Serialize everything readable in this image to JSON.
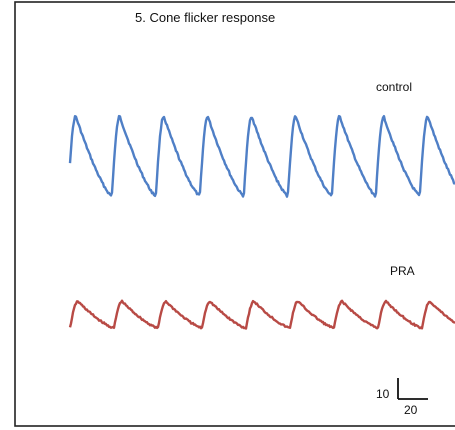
{
  "chart_data": {
    "type": "line",
    "title": "5. Cone flicker response",
    "xlabel": "",
    "ylabel": "",
    "grid": false,
    "series": [
      {
        "name": "control",
        "color": "#4f7fc6",
        "cycles": 9,
        "peak_to_trough": 10.5
      },
      {
        "name": "PRA",
        "color": "#b84a45",
        "cycles": 9,
        "peak_to_trough": 3.5
      }
    ],
    "scale_bar": {
      "vertical_value": "10",
      "horizontal_value": "20"
    }
  }
}
